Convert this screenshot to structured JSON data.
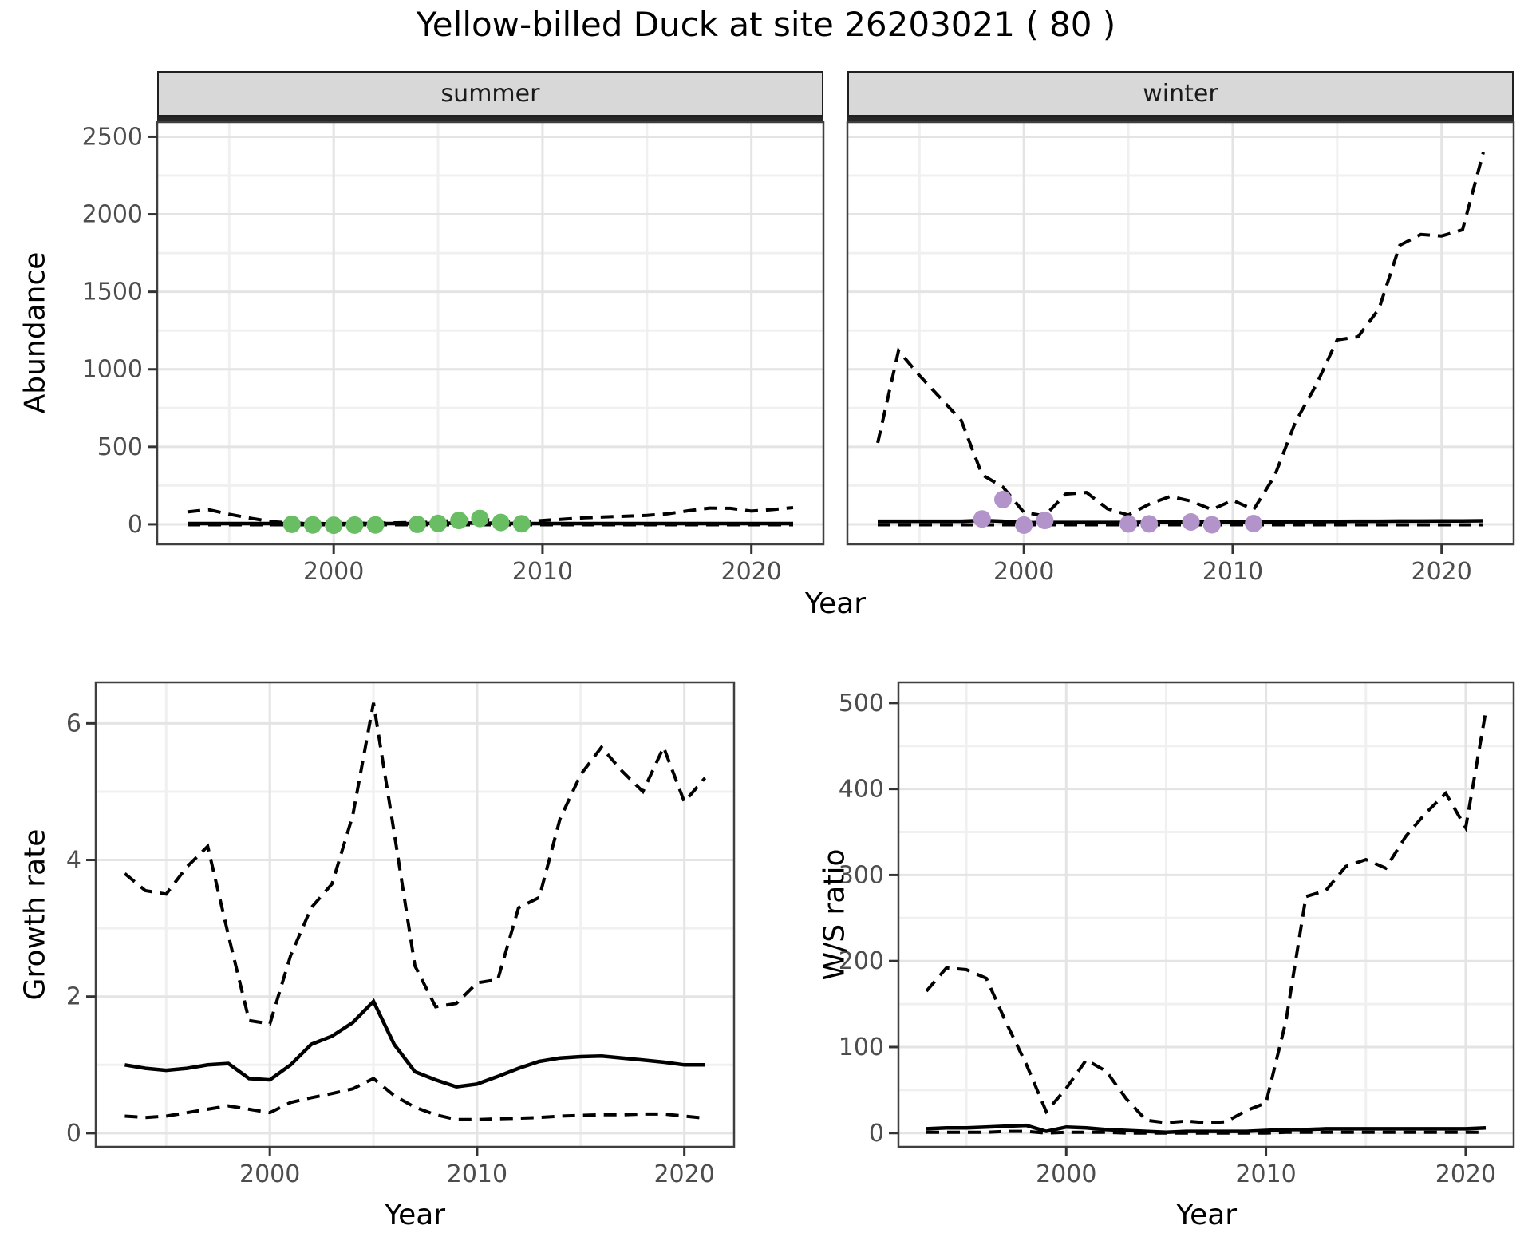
{
  "title": "Yellow-billed Duck at site 26203021 ( 80 )",
  "colors": {
    "summer_point": "#69BE64",
    "winter_point": "#B293CA",
    "line": "#000000",
    "strip_bg": "#D8D8D8",
    "strip_border": "#1F1F1F",
    "panel_border": "#3F3F3F",
    "grid_major": "#E4E4E4",
    "grid_minor": "#F0F0F0",
    "axis_text": "#4D4D4D"
  },
  "chart_data": [
    {
      "id": "abundance-summer",
      "type": "line",
      "facet": "summer",
      "xlabel": "Year",
      "ylabel": "Abundance",
      "xlim": [
        1991.55,
        2023.45
      ],
      "ylim": [
        -129,
        2595
      ],
      "xticks": [
        2000,
        2010,
        2020
      ],
      "xminor": [
        1995,
        2005,
        2015
      ],
      "yticks": [
        0,
        500,
        1000,
        1500,
        2000,
        2500
      ],
      "yminor": [
        250,
        750,
        1250,
        1750,
        2250
      ],
      "x": [
        1993,
        1994,
        1995,
        1996,
        1997,
        1998,
        1999,
        2000,
        2001,
        2002,
        2003,
        2004,
        2005,
        2006,
        2007,
        2008,
        2009,
        2010,
        2011,
        2012,
        2013,
        2014,
        2015,
        2016,
        2017,
        2018,
        2019,
        2020,
        2021,
        2022
      ],
      "series": [
        {
          "name": "upper_ci",
          "style": "dashed",
          "values": [
            80,
            95,
            65,
            40,
            18,
            8,
            6,
            5,
            6,
            8,
            10,
            12,
            15,
            30,
            35,
            22,
            15,
            25,
            33,
            42,
            48,
            52,
            58,
            68,
            88,
            105,
            103,
            85,
            95,
            108
          ]
        },
        {
          "name": "median",
          "style": "solid",
          "values": [
            5,
            5,
            5,
            5,
            5,
            5,
            4,
            4,
            5,
            5,
            5,
            5,
            6,
            8,
            8,
            6,
            5,
            5,
            5,
            5,
            5,
            5,
            5,
            5,
            5,
            5,
            5,
            5,
            5,
            5
          ]
        },
        {
          "name": "lower_ci",
          "style": "dashed",
          "values": [
            -3,
            -3,
            -3,
            -3,
            -3,
            -3,
            -3,
            -3,
            -3,
            -3,
            -3,
            -3,
            -3,
            -3,
            -3,
            -3,
            -3,
            -3,
            -3,
            -3,
            -3,
            -3,
            -3,
            -3,
            -3,
            -3,
            -3,
            -3,
            -3,
            -3
          ]
        }
      ],
      "points": {
        "name": "observed-counts-summer",
        "color_key": "summer_point",
        "x": [
          1998,
          1999,
          2000,
          2001,
          2002,
          2004,
          2005,
          2006,
          2007,
          2008,
          2009
        ],
        "y": [
          0,
          -4,
          -6,
          -5,
          -4,
          0,
          6,
          25,
          38,
          12,
          4
        ]
      }
    },
    {
      "id": "abundance-winter",
      "type": "line",
      "facet": "winter",
      "xlabel": "Year",
      "ylabel": "Abundance",
      "xlim": [
        1991.55,
        2023.45
      ],
      "ylim": [
        -129,
        2595
      ],
      "xticks": [
        2000,
        2010,
        2020
      ],
      "xminor": [
        1995,
        2005,
        2015
      ],
      "yticks": [
        0,
        500,
        1000,
        1500,
        2000,
        2500
      ],
      "yminor": [
        250,
        750,
        1250,
        1750,
        2250
      ],
      "x": [
        1993,
        1994,
        1995,
        1996,
        1997,
        1998,
        1999,
        2000,
        2001,
        2002,
        2003,
        2004,
        2005,
        2006,
        2007,
        2008,
        2009,
        2010,
        2011,
        2012,
        2013,
        2014,
        2015,
        2016,
        2017,
        2018,
        2019,
        2020,
        2021,
        2022
      ],
      "series": [
        {
          "name": "upper_ci",
          "style": "dashed",
          "values": [
            525,
            1120,
            960,
            815,
            670,
            320,
            240,
            77,
            55,
            195,
            205,
            100,
            60,
            130,
            180,
            150,
            95,
            155,
            95,
            310,
            660,
            900,
            1190,
            1210,
            1390,
            1800,
            1870,
            1860,
            1900,
            2400
          ]
        },
        {
          "name": "median",
          "style": "solid",
          "values": [
            20,
            20,
            20,
            20,
            20,
            25,
            20,
            10,
            12,
            12,
            12,
            12,
            12,
            14,
            15,
            15,
            14,
            14,
            15,
            16,
            17,
            18,
            19,
            20,
            20,
            21,
            21,
            22,
            22,
            23
          ]
        },
        {
          "name": "lower_ci",
          "style": "dashed",
          "values": [
            -3,
            -3,
            -3,
            -3,
            -3,
            -3,
            -3,
            -3,
            -3,
            -3,
            -3,
            -3,
            -3,
            -3,
            -3,
            -3,
            -3,
            -3,
            -3,
            -3,
            -3,
            -3,
            -3,
            -3,
            -3,
            -3,
            -3,
            -3,
            -3,
            -3
          ]
        }
      ],
      "points": {
        "name": "observed-counts-winter",
        "color_key": "winter_point",
        "x": [
          1998,
          1999,
          2000,
          2001,
          2005,
          2006,
          2008,
          2009,
          2011
        ],
        "y": [
          35,
          160,
          -5,
          25,
          3,
          3,
          15,
          -3,
          5
        ]
      }
    },
    {
      "id": "growth-rate",
      "type": "line",
      "facet": "",
      "xlabel": "Year",
      "ylabel": "Growth rate",
      "xlim": [
        1991.6,
        2022.4
      ],
      "ylim": [
        -0.2,
        6.6
      ],
      "xticks": [
        2000,
        2010,
        2020
      ],
      "xminor": [
        1995,
        2005,
        2015
      ],
      "yticks": [
        0,
        2,
        4,
        6
      ],
      "yminor": [
        1,
        3,
        5
      ],
      "x": [
        1993,
        1994,
        1995,
        1996,
        1997,
        1998,
        1999,
        2000,
        2001,
        2002,
        2003,
        2004,
        2005,
        2006,
        2007,
        2008,
        2009,
        2010,
        2011,
        2012,
        2013,
        2014,
        2015,
        2016,
        2017,
        2018,
        2019,
        2020,
        2021
      ],
      "series": [
        {
          "name": "upper_ci",
          "style": "dashed",
          "values": [
            3.8,
            3.55,
            3.5,
            3.9,
            4.2,
            2.9,
            1.65,
            1.6,
            2.6,
            3.3,
            3.65,
            4.65,
            6.3,
            4.4,
            2.45,
            1.85,
            1.9,
            2.2,
            2.25,
            3.3,
            3.45,
            4.6,
            5.25,
            5.65,
            5.3,
            5.0,
            5.65,
            4.85,
            5.2
          ]
        },
        {
          "name": "median",
          "style": "solid",
          "values": [
            1.0,
            0.95,
            0.92,
            0.95,
            1.0,
            1.02,
            0.8,
            0.78,
            1.0,
            1.3,
            1.42,
            1.62,
            1.93,
            1.3,
            0.9,
            0.78,
            0.68,
            0.72,
            0.83,
            0.95,
            1.05,
            1.1,
            1.12,
            1.13,
            1.1,
            1.07,
            1.04,
            1.0,
            1.0
          ]
        },
        {
          "name": "lower_ci",
          "style": "dashed",
          "values": [
            0.25,
            0.23,
            0.25,
            0.3,
            0.35,
            0.4,
            0.35,
            0.3,
            0.45,
            0.52,
            0.58,
            0.65,
            0.8,
            0.55,
            0.38,
            0.27,
            0.2,
            0.2,
            0.21,
            0.22,
            0.23,
            0.25,
            0.26,
            0.27,
            0.27,
            0.28,
            0.28,
            0.25,
            0.22
          ]
        }
      ],
      "points": null
    },
    {
      "id": "ws-ratio",
      "type": "line",
      "facet": "",
      "xlabel": "Year",
      "ylabel": "W/S ratio",
      "xlim": [
        1991.6,
        2022.4
      ],
      "ylim": [
        -16,
        524
      ],
      "xticks": [
        2000,
        2010,
        2020
      ],
      "xminor": [
        1995,
        2005,
        2015
      ],
      "yticks": [
        0,
        100,
        200,
        300,
        400,
        500
      ],
      "yminor": [
        50,
        150,
        250,
        350,
        450
      ],
      "x": [
        1993,
        1994,
        1995,
        1996,
        1997,
        1998,
        1999,
        2000,
        2001,
        2002,
        2003,
        2004,
        2005,
        2006,
        2007,
        2008,
        2009,
        2010,
        2011,
        2012,
        2013,
        2014,
        2015,
        2016,
        2017,
        2018,
        2019,
        2020,
        2021
      ],
      "series": [
        {
          "name": "upper_ci",
          "style": "dashed",
          "values": [
            165,
            192,
            190,
            180,
            128,
            80,
            25,
            52,
            85,
            72,
            40,
            15,
            12,
            14,
            12,
            13,
            26,
            35,
            130,
            275,
            282,
            310,
            318,
            308,
            345,
            372,
            395,
            355,
            490
          ]
        },
        {
          "name": "median",
          "style": "solid",
          "values": [
            5,
            6,
            6,
            7,
            8,
            9,
            2,
            7,
            6,
            4,
            3,
            2,
            1,
            2,
            2,
            2,
            2,
            3,
            4,
            4,
            5,
            5,
            5,
            5,
            5,
            5,
            5,
            5,
            6
          ]
        },
        {
          "name": "lower_ci",
          "style": "dashed",
          "values": [
            1,
            1,
            1,
            1,
            2,
            2,
            0,
            1,
            1,
            1,
            0,
            0,
            0,
            0,
            0,
            0,
            0,
            0,
            1,
            1,
            1,
            1,
            1,
            1,
            1,
            1,
            1,
            1,
            1
          ]
        }
      ],
      "points": null
    }
  ]
}
